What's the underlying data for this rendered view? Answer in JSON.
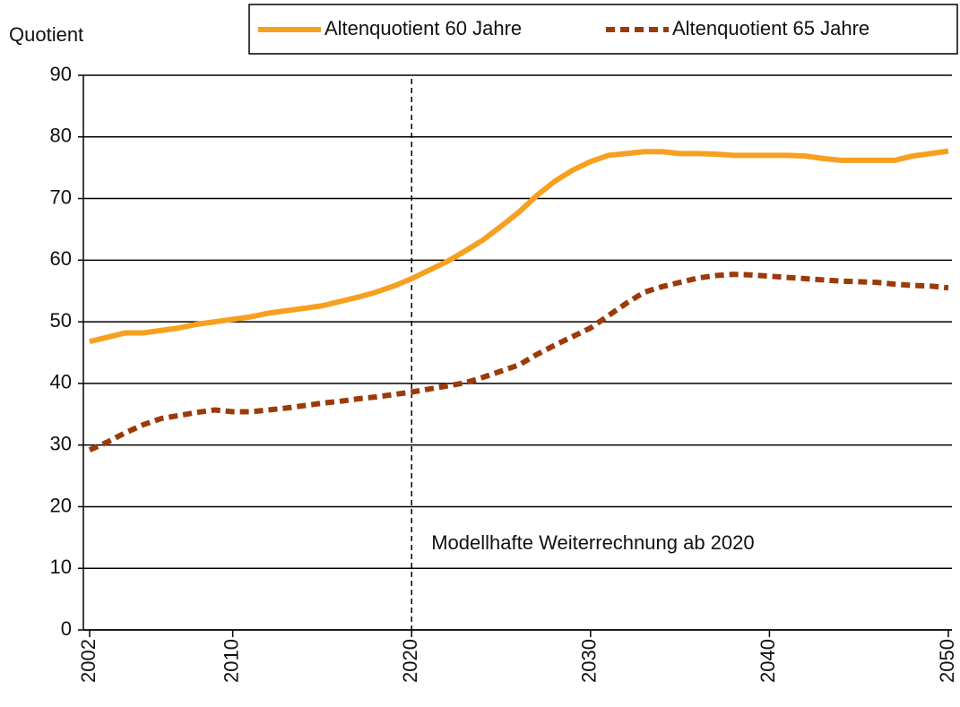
{
  "chart_data": {
    "type": "line",
    "y_label": "Quotient",
    "x": [
      2002,
      2003,
      2004,
      2005,
      2006,
      2007,
      2008,
      2009,
      2010,
      2011,
      2012,
      2013,
      2014,
      2015,
      2016,
      2017,
      2018,
      2019,
      2020,
      2021,
      2022,
      2023,
      2024,
      2025,
      2026,
      2027,
      2028,
      2029,
      2030,
      2031,
      2032,
      2033,
      2034,
      2035,
      2036,
      2037,
      2038,
      2039,
      2040,
      2041,
      2042,
      2043,
      2044,
      2045,
      2046,
      2047,
      2048,
      2049,
      2050
    ],
    "series": [
      {
        "name": "Altenquotient 60 Jahre",
        "color": "#f7a020",
        "line_style": "solid",
        "values": [
          46.8,
          47.5,
          48.2,
          48.2,
          48.6,
          49.0,
          49.6,
          50.0,
          50.4,
          50.8,
          51.4,
          51.8,
          52.2,
          52.6,
          53.3,
          54.0,
          54.8,
          55.8,
          57.0,
          58.4,
          59.8,
          61.5,
          63.3,
          65.5,
          67.8,
          70.5,
          72.8,
          74.6,
          76.0,
          77.0,
          77.3,
          77.6,
          77.6,
          77.3,
          77.3,
          77.2,
          77.0,
          77.0,
          77.0,
          77.0,
          76.9,
          76.5,
          76.2,
          76.2,
          76.2,
          76.2,
          76.9,
          77.3,
          77.7
        ]
      },
      {
        "name": "Altenquotient 65 Jahre",
        "color": "#9b3a0a",
        "line_style": "dashed",
        "values": [
          29.2,
          30.5,
          32.0,
          33.3,
          34.3,
          34.8,
          35.3,
          35.7,
          35.4,
          35.4,
          35.7,
          36.0,
          36.4,
          36.8,
          37.1,
          37.5,
          37.8,
          38.2,
          38.6,
          39.1,
          39.6,
          40.1,
          41.0,
          42.0,
          43.0,
          44.7,
          46.2,
          47.6,
          49.0,
          51.0,
          53.0,
          54.8,
          55.7,
          56.4,
          57.1,
          57.5,
          57.7,
          57.6,
          57.4,
          57.2,
          57.0,
          56.8,
          56.6,
          56.5,
          56.4,
          56.1,
          55.9,
          55.8,
          55.5
        ]
      }
    ],
    "xlim": [
      2001.65,
      2050.2
    ],
    "xticks": [
      2002,
      2010,
      2020,
      2030,
      2040,
      2050
    ],
    "ylim": [
      0,
      90
    ],
    "yticks": [
      0,
      10,
      20,
      30,
      40,
      50,
      60,
      70,
      80,
      90
    ],
    "grid": true,
    "legend": "top-right",
    "vline": {
      "x": 2020,
      "label": "Modellhafte Weiterrechnung ab 2020"
    }
  }
}
